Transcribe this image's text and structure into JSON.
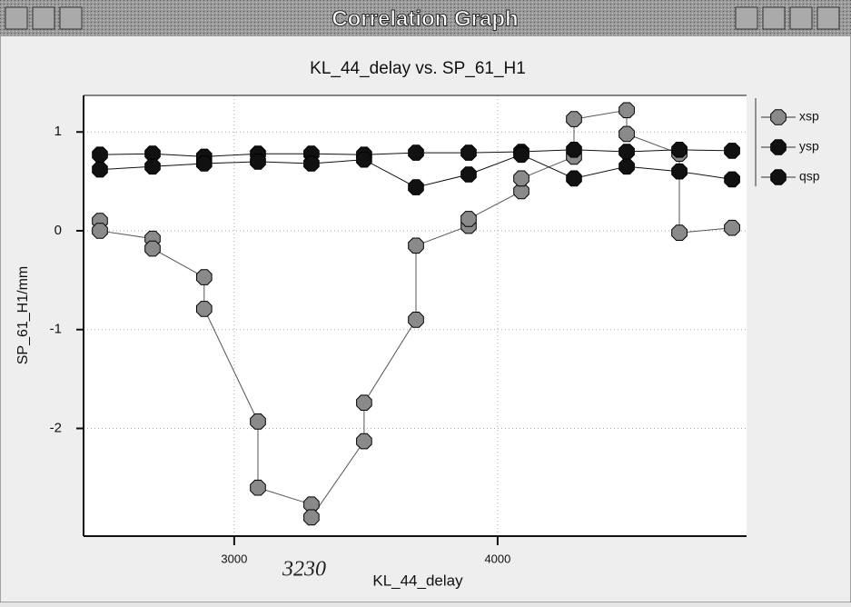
{
  "window": {
    "title": "Correlation Graph"
  },
  "chart_data": {
    "type": "line",
    "title": "KL_44_delay vs. SP_61_H1",
    "x_label": "KL_44_delay",
    "y_label": "SP_61_H1/mm",
    "annotation": "3230",
    "xlim": [
      2428,
      4945
    ],
    "ylim": [
      -3.09,
      1.37
    ],
    "xticks": [
      3000,
      4000
    ],
    "yticks": [
      -2,
      -1,
      0,
      1
    ],
    "grid": true,
    "legend": "top-right",
    "series": [
      {
        "name": "xsp",
        "color": "#8a8a8a",
        "x": [
          2490,
          2490,
          2690,
          2690,
          2886,
          2886,
          3090,
          3090,
          3293,
          3293,
          3493,
          3493,
          3690,
          3690,
          3890,
          3890,
          4090,
          4090,
          4290,
          4290,
          4490,
          4490,
          4690,
          4690,
          4890
        ],
        "values": [
          0.1,
          0.0,
          -0.08,
          -0.18,
          -0.47,
          -0.79,
          -1.93,
          -2.6,
          -2.77,
          -2.9,
          -2.13,
          -1.74,
          -0.9,
          -0.15,
          0.05,
          0.12,
          0.4,
          0.53,
          0.75,
          1.13,
          1.22,
          0.98,
          0.78,
          -0.02,
          0.03
        ]
      },
      {
        "name": "ysp",
        "color": "#111111",
        "x": [
          2490,
          2690,
          2886,
          3090,
          3293,
          3493,
          3690,
          3890,
          4090,
          4290,
          4490,
          4690,
          4890
        ],
        "values": [
          0.77,
          0.78,
          0.75,
          0.78,
          0.78,
          0.77,
          0.79,
          0.79,
          0.8,
          0.82,
          0.8,
          0.82,
          0.81
        ]
      },
      {
        "name": "qsp",
        "color": "#111111",
        "x": [
          2490,
          2690,
          2886,
          3090,
          3293,
          3493,
          3690,
          3890,
          4090,
          4290,
          4490,
          4690,
          4890
        ],
        "values": [
          0.62,
          0.65,
          0.68,
          0.7,
          0.68,
          0.72,
          0.44,
          0.57,
          0.77,
          0.53,
          0.65,
          0.6,
          0.52
        ]
      }
    ]
  }
}
